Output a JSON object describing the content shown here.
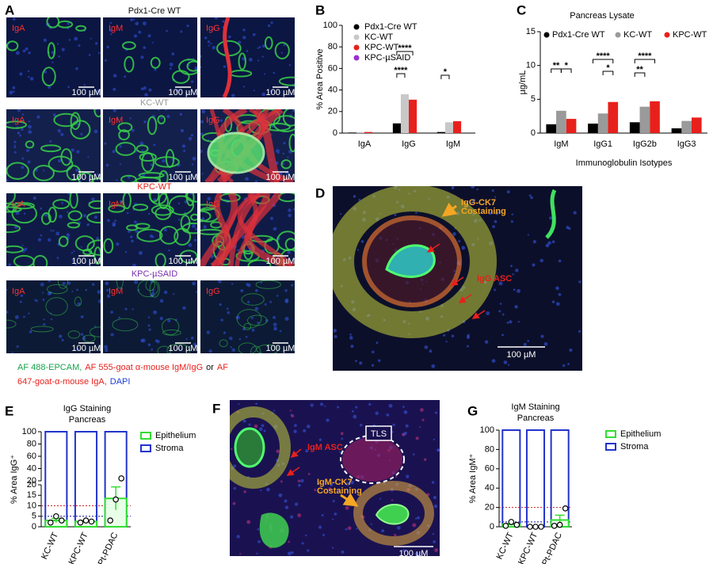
{
  "figure_a": {
    "letter": "A",
    "stains": [
      "IgA",
      "IgM",
      "IgG"
    ],
    "scale_bar": "100 µM",
    "groups": [
      {
        "title": "Pdx1-Cre WT",
        "color": "#111111"
      },
      {
        "title": "KC-WT",
        "color": "#9a9a9a"
      },
      {
        "title": "KPC-WT",
        "color": "#e8201c"
      },
      {
        "title": "KPC-µSAID",
        "color": "#7a2fb0"
      }
    ],
    "caption": [
      [
        {
          "text": "AF 488-EPCAM,",
          "color": "#17a34a"
        },
        {
          "text": "AF 555-goat α-mouse IgM/IgG",
          "color": "#e8201c"
        },
        {
          "text": "or",
          "color": "#111111"
        },
        {
          "text": "AF",
          "color": "#e8201c"
        }
      ],
      [
        {
          "text": "647-goat-α-mouse IgA,",
          "color": "#e8201c"
        },
        {
          "text": "DAPI",
          "color": "#1f3fd0"
        }
      ]
    ]
  },
  "figure_d": {
    "letter": "D",
    "costain": [
      "IgG-CK7",
      "Costaining"
    ],
    "asc": "IgG ASC",
    "scale_bar": "100 µM"
  },
  "figure_f": {
    "letter": "F",
    "tls": "TLS",
    "asc": "IgM ASC",
    "costain": [
      "IgM-CK7",
      "Costaining"
    ],
    "scale_bar": "100 µM"
  },
  "chart_data": [
    {
      "letter": "B",
      "type": "bar",
      "ylabel": "% Area Positive",
      "categories": [
        "IgA",
        "IgG",
        "IgM"
      ],
      "series": [
        {
          "name": "Pdx1-Cre  WT",
          "color": "#000000",
          "values": [
            0.5,
            9,
            1
          ]
        },
        {
          "name": "KC-WT",
          "color": "#c8c8c8",
          "values": [
            1,
            36,
            10
          ]
        },
        {
          "name": "KPC-WT",
          "color": "#e8201c",
          "values": [
            1,
            31,
            11
          ]
        },
        {
          "name": "KPC-µSAID",
          "color": "#9b30d0",
          "values": [
            0,
            0,
            0
          ]
        }
      ],
      "ylim": [
        0,
        100
      ],
      "yticks": [
        0,
        20,
        40,
        60,
        80,
        100
      ],
      "legend": "upper left",
      "annotations": [
        "****",
        "****",
        "*"
      ]
    },
    {
      "letter": "C",
      "type": "bar",
      "title": "Pancreas Lysate",
      "ylabel": "µg/mL",
      "xlabel": "Immunoglobulin Isotypes",
      "categories": [
        "IgM",
        "IgG1",
        "IgG2b",
        "IgG3"
      ],
      "series": [
        {
          "name": "Pdx1-Cre WT",
          "color": "#000000",
          "values": [
            1.3,
            1.4,
            1.6,
            0.7
          ]
        },
        {
          "name": "KC-WT",
          "color": "#9a9a9a",
          "values": [
            3.3,
            2.9,
            3.9,
            1.8
          ]
        },
        {
          "name": "KPC-WT",
          "color": "#e8201c",
          "values": [
            2.1,
            4.6,
            4.7,
            2.3
          ]
        }
      ],
      "ylim": [
        0,
        15
      ],
      "yticks": [
        0,
        5,
        10,
        15
      ],
      "legend": "top",
      "annotations": [
        "**",
        "*",
        "****",
        "*",
        "**",
        "****"
      ]
    },
    {
      "letter": "E",
      "type": "bar",
      "title": "IgG Staining",
      "subtitle": "Pancreas",
      "ylabel": "% Area IgG⁺",
      "categories": [
        "KC-WT",
        "KPC-WT",
        "Pt-PDAC"
      ],
      "series": [
        {
          "name": "Epithelium",
          "color": "#33dd33",
          "values": [
            3,
            2.5,
            13.5
          ],
          "errors": [
            1,
            0.5,
            5.5
          ],
          "points": [
            [
              2,
              5,
              3
            ],
            [
              2,
              3,
              2.5
            ],
            [
              3,
              13,
              24
            ]
          ]
        },
        {
          "name": "Stroma",
          "color": "#2233cc",
          "values": [
            100,
            100,
            100
          ]
        }
      ],
      "ylim": [
        0,
        100
      ],
      "yticks": [
        0,
        5,
        10,
        15,
        20,
        40,
        60,
        80,
        100
      ],
      "ybreak": 20,
      "hlines": [
        {
          "value": 5,
          "color": "#111199"
        },
        {
          "value": 10,
          "color": "#cc2222"
        }
      ],
      "legend": "right"
    },
    {
      "letter": "G",
      "type": "bar",
      "title": "IgM Staining",
      "subtitle": "Pancreas",
      "ylabel": "% Area IgM⁺",
      "categories": [
        "KC-WT",
        "KPC-WT",
        "Pt-PDAC"
      ],
      "series": [
        {
          "name": "Epithelium",
          "color": "#33dd33",
          "values": [
            2.5,
            0,
            7
          ],
          "errors": [
            1,
            0,
            5
          ],
          "points": [
            [
              1,
              5,
              2
            ],
            [
              0,
              0,
              0
            ],
            [
              1,
              2,
              19
            ]
          ]
        },
        {
          "name": "Stroma",
          "color": "#2233cc",
          "values": [
            100,
            100,
            100
          ]
        }
      ],
      "ylim": [
        0,
        100
      ],
      "yticks": [
        0,
        20,
        40,
        60,
        80,
        100
      ],
      "hlines": [
        {
          "value": 5,
          "color": "#111199"
        },
        {
          "value": 20,
          "color": "#cc2222"
        }
      ],
      "legend": "right"
    }
  ]
}
